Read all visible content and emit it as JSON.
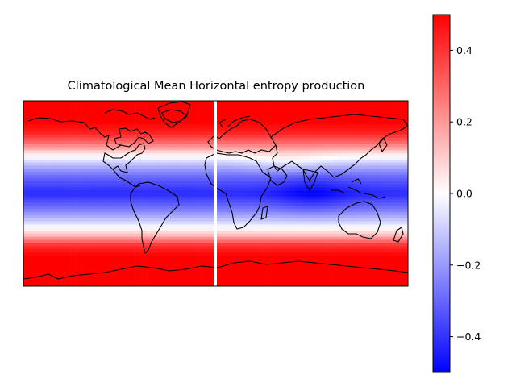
{
  "figure": {
    "title": "Climatological Mean Horizontal entropy production"
  },
  "chart_data": {
    "type": "heatmap",
    "title": "Climatological Mean Horizontal entropy production",
    "projection": "PlateCarree",
    "lon_range": [
      -180,
      180
    ],
    "lat_range": [
      -90,
      90
    ],
    "colormap": "bwr",
    "colorbar": {
      "vmin": -0.5,
      "vmax": 0.5,
      "ticks": [
        0.4,
        0.2,
        0.0,
        -0.2,
        -0.4
      ],
      "tick_labels": [
        "0.4",
        "0.2",
        "0.0",
        "−0.2",
        "−0.4"
      ],
      "colors": {
        "min": "#0000ff",
        "mid": "#ffffff",
        "max": "#ff0000"
      }
    },
    "zonal_profile": {
      "lat": [
        90,
        70,
        60,
        50,
        45,
        40,
        30,
        20,
        10,
        0,
        -10,
        -20,
        -30,
        -40,
        -45,
        -50,
        -60,
        -70,
        -90
      ],
      "value": [
        0.5,
        0.5,
        0.45,
        0.3,
        0.2,
        0.08,
        -0.1,
        -0.25,
        -0.35,
        -0.42,
        -0.32,
        -0.2,
        -0.05,
        0.12,
        0.25,
        0.4,
        0.5,
        0.5,
        0.5
      ]
    },
    "missing_column_lon": 0,
    "coastlines": true
  }
}
